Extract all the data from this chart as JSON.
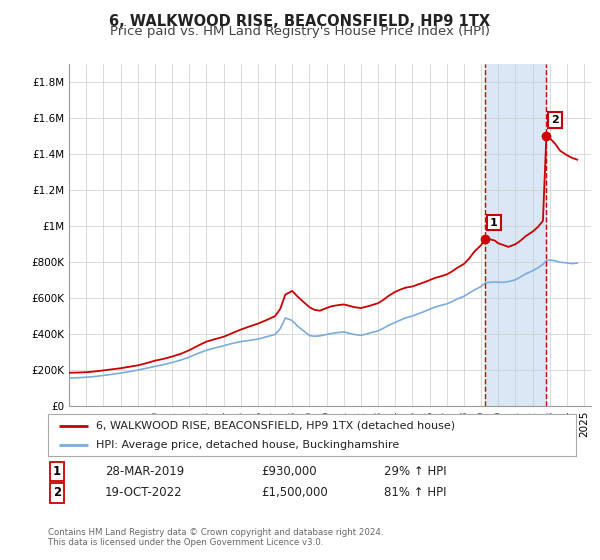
{
  "title": "6, WALKWOOD RISE, BEACONSFIELD, HP9 1TX",
  "subtitle": "Price paid vs. HM Land Registry's House Price Index (HPI)",
  "ylim": [
    0,
    1900000
  ],
  "xlim_left": 1995,
  "xlim_right": 2025.4,
  "yticks": [
    0,
    200000,
    400000,
    600000,
    800000,
    1000000,
    1200000,
    1400000,
    1600000,
    1800000
  ],
  "ytick_labels": [
    "£0",
    "£200K",
    "£400K",
    "£600K",
    "£800K",
    "£1M",
    "£1.2M",
    "£1.4M",
    "£1.6M",
    "£1.8M"
  ],
  "red_line_color": "#cc0000",
  "blue_line_color": "#7aace0",
  "vline1_x": 2019.25,
  "vline2_x": 2022.8,
  "sale1_price": 930000,
  "sale2_price": 1500000,
  "legend_red_label": "6, WALKWOOD RISE, BEACONSFIELD, HP9 1TX (detached house)",
  "legend_blue_label": "HPI: Average price, detached house, Buckinghamshire",
  "footer_text1": "Contains HM Land Registry data © Crown copyright and database right 2024.",
  "footer_text2": "This data is licensed under the Open Government Licence v3.0.",
  "bg_color": "#ffffff",
  "shaded_region_color": "#dae8f5",
  "title_fontsize": 10.5,
  "subtitle_fontsize": 9.5,
  "tick_fontsize": 7.5,
  "legend_fontsize": 8,
  "red_x": [
    1995.0,
    1995.5,
    1996.0,
    1996.5,
    1997.0,
    1997.5,
    1998.0,
    1998.5,
    1999.0,
    1999.5,
    2000.0,
    2000.5,
    2001.0,
    2001.5,
    2002.0,
    2002.5,
    2003.0,
    2003.5,
    2004.0,
    2004.5,
    2005.0,
    2005.5,
    2006.0,
    2006.5,
    2007.0,
    2007.3,
    2007.6,
    2008.0,
    2008.3,
    2008.7,
    2009.0,
    2009.3,
    2009.6,
    2010.0,
    2010.3,
    2010.6,
    2011.0,
    2011.3,
    2011.6,
    2012.0,
    2012.3,
    2012.6,
    2013.0,
    2013.3,
    2013.6,
    2014.0,
    2014.3,
    2014.6,
    2015.0,
    2015.3,
    2015.6,
    2016.0,
    2016.3,
    2016.6,
    2017.0,
    2017.3,
    2017.6,
    2018.0,
    2018.3,
    2018.6,
    2019.0,
    2019.25,
    2019.5,
    2019.8,
    2020.0,
    2020.3,
    2020.6,
    2021.0,
    2021.3,
    2021.6,
    2022.0,
    2022.3,
    2022.6,
    2022.8,
    2023.0,
    2023.3,
    2023.6,
    2024.0,
    2024.3,
    2024.6
  ],
  "red_y": [
    185000,
    186000,
    188000,
    192000,
    198000,
    204000,
    210000,
    218000,
    226000,
    238000,
    252000,
    262000,
    275000,
    290000,
    310000,
    335000,
    358000,
    372000,
    385000,
    405000,
    425000,
    442000,
    458000,
    478000,
    500000,
    540000,
    620000,
    640000,
    610000,
    575000,
    550000,
    535000,
    530000,
    545000,
    555000,
    560000,
    565000,
    558000,
    550000,
    545000,
    552000,
    560000,
    572000,
    590000,
    612000,
    635000,
    648000,
    658000,
    665000,
    675000,
    685000,
    700000,
    712000,
    720000,
    732000,
    748000,
    768000,
    790000,
    820000,
    858000,
    895000,
    930000,
    928000,
    920000,
    905000,
    895000,
    885000,
    900000,
    920000,
    945000,
    970000,
    995000,
    1030000,
    1500000,
    1490000,
    1460000,
    1420000,
    1395000,
    1380000,
    1370000
  ],
  "blue_x": [
    1995.0,
    1995.5,
    1996.0,
    1996.5,
    1997.0,
    1997.5,
    1998.0,
    1998.5,
    1999.0,
    1999.5,
    2000.0,
    2000.5,
    2001.0,
    2001.5,
    2002.0,
    2002.5,
    2003.0,
    2003.5,
    2004.0,
    2004.5,
    2005.0,
    2005.5,
    2006.0,
    2006.5,
    2007.0,
    2007.3,
    2007.6,
    2008.0,
    2008.3,
    2008.7,
    2009.0,
    2009.3,
    2009.6,
    2010.0,
    2010.3,
    2010.6,
    2011.0,
    2011.3,
    2011.6,
    2012.0,
    2012.3,
    2012.6,
    2013.0,
    2013.3,
    2013.6,
    2014.0,
    2014.3,
    2014.6,
    2015.0,
    2015.3,
    2015.6,
    2016.0,
    2016.3,
    2016.6,
    2017.0,
    2017.3,
    2017.6,
    2018.0,
    2018.3,
    2018.6,
    2019.0,
    2019.25,
    2019.5,
    2019.8,
    2020.0,
    2020.3,
    2020.6,
    2021.0,
    2021.3,
    2021.6,
    2022.0,
    2022.3,
    2022.6,
    2022.8,
    2023.0,
    2023.3,
    2023.6,
    2024.0,
    2024.3,
    2024.6
  ],
  "blue_y": [
    155000,
    157000,
    160000,
    164000,
    170000,
    176000,
    183000,
    191000,
    200000,
    210000,
    220000,
    230000,
    242000,
    255000,
    272000,
    292000,
    310000,
    323000,
    335000,
    348000,
    358000,
    365000,
    372000,
    385000,
    398000,
    430000,
    490000,
    475000,
    445000,
    415000,
    392000,
    388000,
    390000,
    398000,
    403000,
    408000,
    412000,
    405000,
    398000,
    393000,
    400000,
    408000,
    418000,
    432000,
    448000,
    465000,
    478000,
    490000,
    500000,
    512000,
    522000,
    538000,
    550000,
    558000,
    568000,
    580000,
    595000,
    610000,
    628000,
    645000,
    665000,
    685000,
    688000,
    690000,
    688000,
    688000,
    692000,
    702000,
    718000,
    735000,
    752000,
    768000,
    788000,
    808000,
    812000,
    808000,
    800000,
    796000,
    792000,
    795000
  ]
}
